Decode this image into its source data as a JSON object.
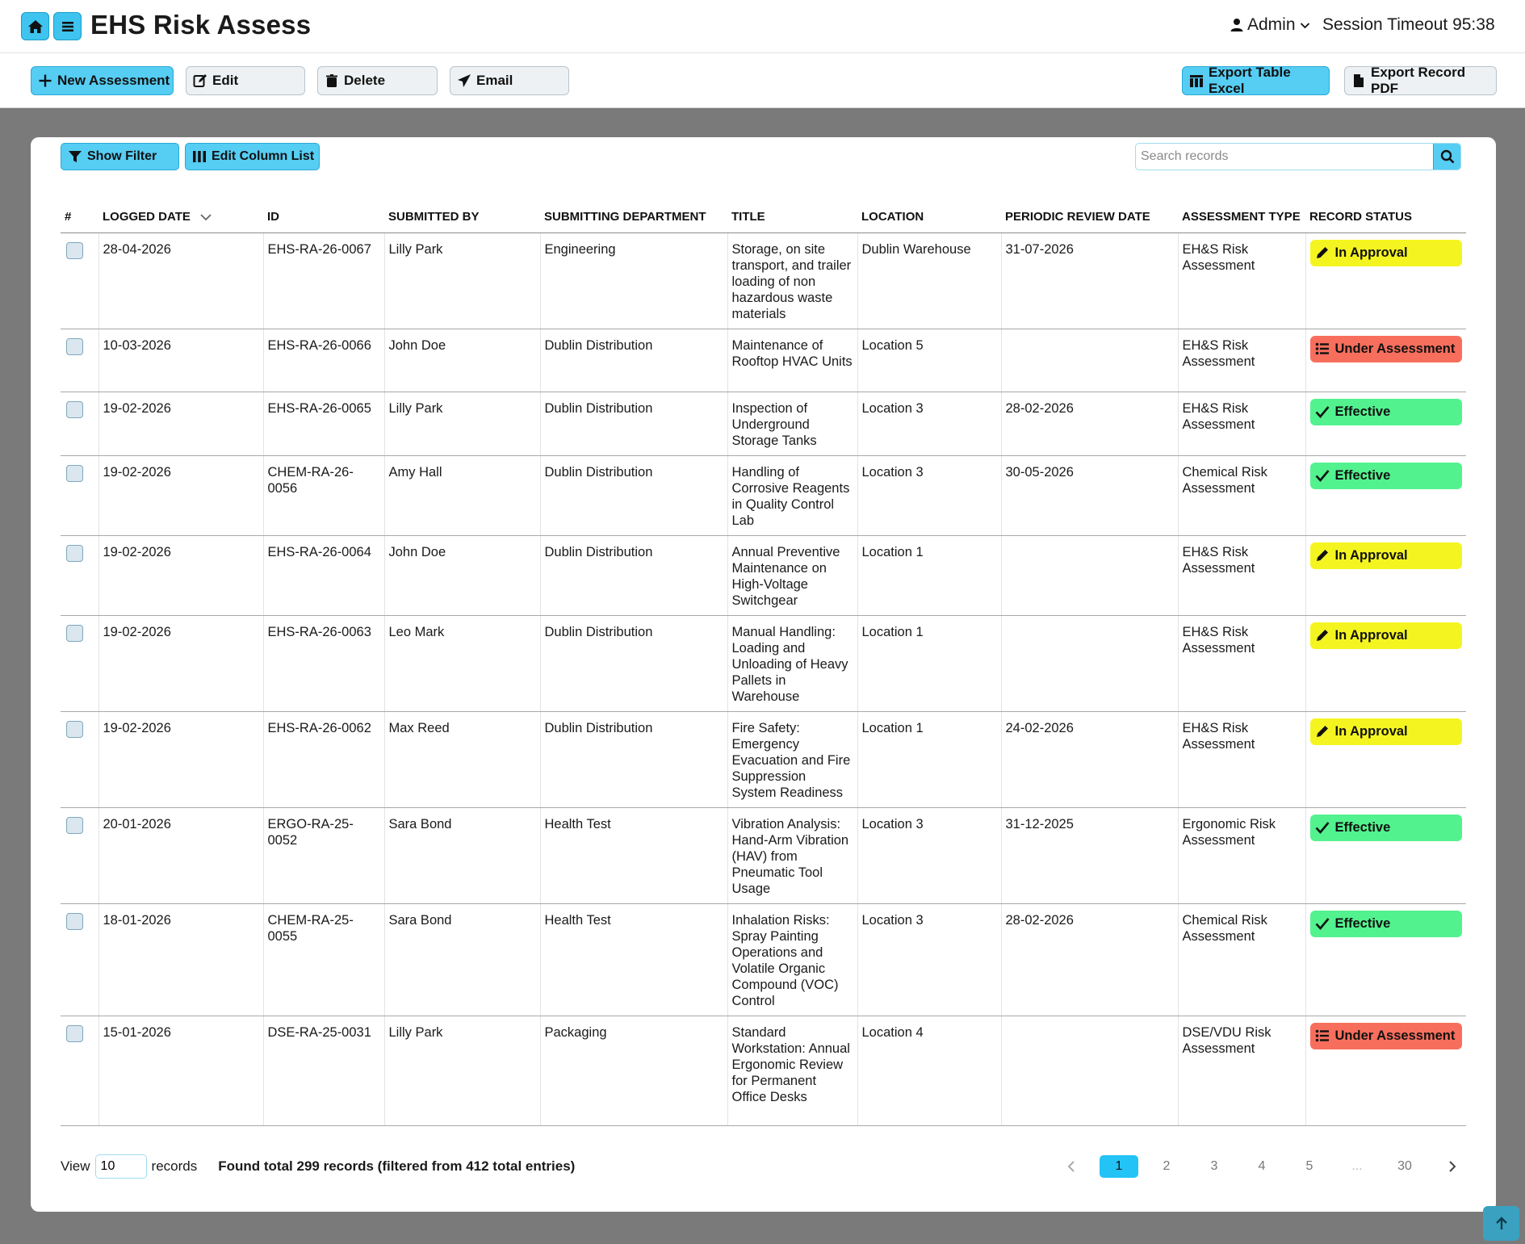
{
  "header": {
    "home_icon": "home-icon",
    "menu_icon": "hamburger-menu-icon",
    "title": "EHS Risk Assess",
    "user": "Admin",
    "session_timeout": "Session Timeout 95:38"
  },
  "toolbar": {
    "new_label": "New Assessment",
    "edit_label": "Edit",
    "delete_label": "Delete",
    "email_label": "Email",
    "export_excel_label": "Export Table Excel",
    "export_pdf_label": "Export Record PDF"
  },
  "panel": {
    "show_filter_label": "Show Filter",
    "edit_columns_label": "Edit Column List",
    "search_placeholder": "Search records"
  },
  "table": {
    "columns": [
      "#",
      "LOGGED DATE",
      "ID",
      "SUBMITTED BY",
      "SUBMITTING DEPARTMENT",
      "TITLE",
      "LOCATION",
      "PERIODIC REVIEW DATE",
      "ASSESSMENT TYPE",
      "RECORD STATUS"
    ],
    "rows": [
      {
        "date": "28-04-2026",
        "id": "EHS-RA-26-0067",
        "by": "Lilly Park",
        "dept": "Engineering",
        "title": "Storage, on site transport, and trailer loading of non hazardous waste materials",
        "location": "Dublin Warehouse",
        "review": "31-07-2026",
        "type": "EH&S Risk Assessment",
        "status": "In Approval"
      },
      {
        "date": "10-03-2026",
        "id": "EHS-RA-26-0066",
        "by": "John Doe",
        "dept": "Dublin Distribution",
        "title": "Maintenance of Rooftop HVAC Units",
        "location": "Location 5",
        "review": "",
        "type": "EH&S Risk Assessment",
        "status": "Under Assessment"
      },
      {
        "date": "19-02-2026",
        "id": "EHS-RA-26-0065",
        "by": "Lilly Park",
        "dept": "Dublin Distribution",
        "title": "Inspection of Underground Storage Tanks",
        "location": "Location 3",
        "review": "28-02-2026",
        "type": "EH&S Risk Assessment",
        "status": "Effective"
      },
      {
        "date": "19-02-2026",
        "id": "CHEM-RA-26-0056",
        "by": "Amy Hall",
        "dept": "Dublin Distribution",
        "title": "Handling of Corrosive Reagents in Quality Control Lab",
        "location": "Location 3",
        "review": "30-05-2026",
        "type": "Chemical Risk Assessment",
        "status": "Effective"
      },
      {
        "date": "19-02-2026",
        "id": "EHS-RA-26-0064",
        "by": "John Doe",
        "dept": "Dublin Distribution",
        "title": "Annual Preventive Maintenance on High-Voltage Switchgear",
        "location": "Location 1",
        "review": "",
        "type": "EH&S Risk Assessment",
        "status": "In Approval"
      },
      {
        "date": "19-02-2026",
        "id": "EHS-RA-26-0063",
        "by": "Leo Mark",
        "dept": "Dublin Distribution",
        "title": "Manual Handling: Loading and Unloading of Heavy Pallets in Warehouse",
        "location": "Location 1",
        "review": "",
        "type": "EH&S Risk Assessment",
        "status": "In Approval"
      },
      {
        "date": "19-02-2026",
        "id": "EHS-RA-26-0062",
        "by": "Max Reed",
        "dept": "Dublin Distribution",
        "title": "Fire Safety: Emergency Evacuation and Fire Suppression System Readiness",
        "location": "Location 1",
        "review": "24-02-2026",
        "type": "EH&S Risk Assessment",
        "status": "In Approval"
      },
      {
        "date": "20-01-2026",
        "id": "ERGO-RA-25-0052",
        "by": "Sara Bond",
        "dept": "Health Test",
        "title": "Vibration Analysis: Hand-Arm Vibration (HAV) from Pneumatic Tool Usage",
        "location": "Location 3",
        "review": "31-12-2025",
        "type": "Ergonomic Risk Assessment",
        "status": "Effective"
      },
      {
        "date": "18-01-2026",
        "id": "CHEM-RA-25-0055",
        "by": "Sara Bond",
        "dept": "Health Test",
        "title": "Inhalation Risks: Spray Painting Operations and Volatile Organic Compound (VOC) Control",
        "location": "Location 3",
        "review": "28-02-2026",
        "type": "Chemical Risk Assessment",
        "status": "Effective"
      },
      {
        "date": "15-01-2026",
        "id": "DSE-RA-25-0031",
        "by": "Lilly Park",
        "dept": "Packaging",
        "title": "Standard Workstation: Annual Ergonomic Review for Permanent Office Desks",
        "location": "Location 4",
        "review": "",
        "type": "DSE/VDU Risk Assessment",
        "status": "Under Assessment"
      }
    ]
  },
  "status_styles": {
    "In Approval": {
      "color": "#f4f520",
      "icon": "pencil-icon"
    },
    "Under Assessment": {
      "color": "#f86e5c",
      "icon": "list-icon"
    },
    "Effective": {
      "color": "#52f28f",
      "icon": "check-icon"
    }
  },
  "footer": {
    "view_label": "View",
    "view_value": "10",
    "records_label": "records",
    "found_text": "Found total 299 records (filtered from 412 total entries)",
    "pages": [
      "1",
      "2",
      "3",
      "4",
      "5",
      "...",
      "30"
    ],
    "current_page": "1"
  },
  "colors": {
    "accent": "#56cdf3",
    "backdrop": "#7a7a7a"
  }
}
